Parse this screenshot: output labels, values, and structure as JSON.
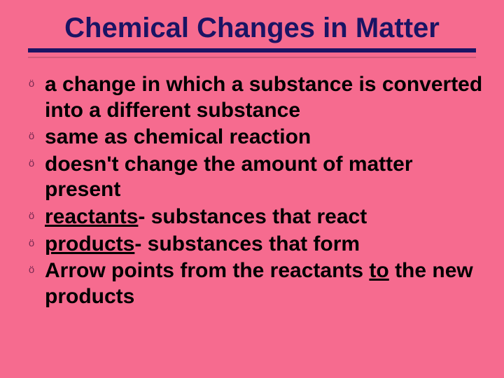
{
  "slide": {
    "background_color": "#f66b8f",
    "title": {
      "text": "Chemical Changes in Matter",
      "color": "#1a1464",
      "fontsize": 40,
      "rule_color": "#1a1464",
      "rule_height": 6
    },
    "bullet_icon": {
      "glyph": "ö",
      "color": "#7a2a52",
      "fontsize": 15
    },
    "body_text": {
      "fontsize": 30,
      "color": "#000000",
      "font_weight": "bold"
    },
    "bullets": [
      {
        "pre": "a change in which a substance is converted into a different substance"
      },
      {
        "pre": "same as chemical reaction"
      },
      {
        "pre": "doesn't change the amount of matter present"
      },
      {
        "u": "reactants",
        "post": "- substances that react"
      },
      {
        "u": "products",
        "post": "- substances that form"
      },
      {
        "pre": "Arrow points from the reactants ",
        "u": "to",
        "post": " the new products"
      }
    ]
  }
}
